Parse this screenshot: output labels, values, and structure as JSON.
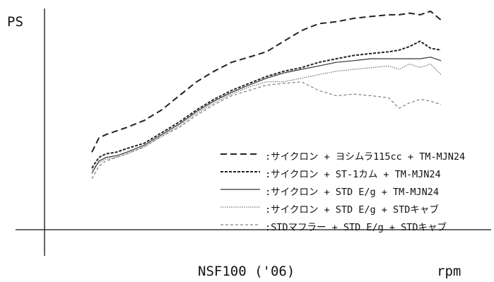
{
  "chart_data": {
    "type": "line",
    "title": "NSF100 ('06)",
    "xlabel": "rpm",
    "ylabel": "PS",
    "grid": false,
    "legend_position": "lower-right",
    "x": [
      0,
      2,
      4,
      7,
      10,
      15,
      20,
      25,
      30,
      35,
      40,
      45,
      50,
      55,
      60,
      65,
      70,
      75,
      80,
      85,
      88,
      91,
      94,
      97,
      100
    ],
    "xlim": [
      0,
      100
    ],
    "ylim": [
      0,
      100
    ],
    "series": [
      {
        "name": ":サイクロン + ヨシムラ115cc + TM-MJN24",
        "dash": "dashed",
        "color": "#222222",
        "values": [
          30.0,
          36.7,
          38.3,
          40.0,
          41.7,
          45.0,
          50.0,
          56.7,
          63.3,
          68.3,
          72.5,
          75.0,
          77.5,
          82.5,
          87.5,
          90.8,
          91.7,
          93.3,
          94.2,
          95.0,
          95.0,
          95.8,
          95.0,
          96.7,
          92.5
        ]
      },
      {
        "name": ":サイクロン + ST-1カム + TM-MJN24",
        "dash": "shortdash",
        "color": "#222222",
        "values": [
          22.5,
          27.5,
          29.2,
          30.0,
          31.7,
          34.2,
          39.2,
          44.2,
          50.0,
          55.0,
          59.2,
          62.5,
          65.8,
          68.3,
          70.0,
          72.5,
          74.2,
          75.8,
          76.7,
          77.5,
          78.3,
          80.0,
          82.5,
          79.2,
          78.3
        ]
      },
      {
        "name": ":サイクロン + STD E/g + TM-MJN24",
        "dash": "solid",
        "color": "#333333",
        "values": [
          20.0,
          25.8,
          27.5,
          28.3,
          30.0,
          33.3,
          38.3,
          43.3,
          49.2,
          54.2,
          58.3,
          61.7,
          65.0,
          67.5,
          69.2,
          70.8,
          72.5,
          73.3,
          74.2,
          74.2,
          74.2,
          74.2,
          74.2,
          75.0,
          73.3
        ]
      },
      {
        "name": ":サイクロン + STD E/g + STDキャブ",
        "dash": "dotted",
        "color": "#555555",
        "values": [
          21.7,
          25.0,
          26.7,
          27.5,
          29.2,
          32.5,
          37.5,
          42.5,
          48.3,
          53.3,
          57.5,
          60.8,
          63.3,
          63.3,
          65.0,
          66.7,
          68.3,
          69.2,
          70.0,
          70.8,
          69.2,
          71.7,
          70.0,
          71.7,
          66.7
        ]
      },
      {
        "name": ":STDマフラー + STD E/g + STDキャブ",
        "dash": "finedash",
        "color": "#666666",
        "values": [
          17.5,
          23.3,
          25.8,
          27.5,
          29.2,
          32.5,
          37.5,
          41.7,
          47.5,
          52.5,
          56.7,
          59.2,
          61.7,
          62.5,
          63.3,
          59.2,
          56.7,
          57.5,
          56.7,
          55.8,
          50.8,
          53.3,
          55.0,
          54.2,
          52.5
        ]
      }
    ]
  }
}
